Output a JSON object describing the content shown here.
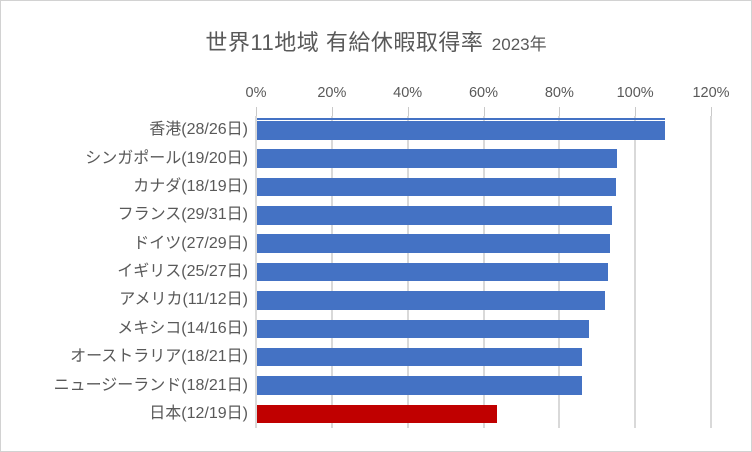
{
  "window": {
    "background": "#ffffff",
    "border_color": "#d2d2d2"
  },
  "chart_data": {
    "type": "bar",
    "orientation": "horizontal",
    "title": "世界11地域 有給休暇取得率",
    "title_suffix": "2023年",
    "categories": [
      "香港(28/26日)",
      "シンガポール(19/20日)",
      "カナダ(18/19日)",
      "フランス(29/31日)",
      "ドイツ(27/29日)",
      "イギリス(25/27日)",
      "アメリカ(11/12日)",
      "メキシコ(14/16日)",
      "オーストラリア(18/21日)",
      "ニュージーランド(18/21日)",
      "日本(12/19日)"
    ],
    "values": [
      107.7,
      95.0,
      94.7,
      93.5,
      93.1,
      92.6,
      91.7,
      87.5,
      85.7,
      85.7,
      63.2
    ],
    "unit": "%",
    "xlabel": "",
    "ylabel": "",
    "xlim": [
      0,
      120
    ],
    "x_ticks": [
      "0%",
      "20%",
      "40%",
      "60%",
      "80%",
      "100%",
      "120%"
    ],
    "x_tick_values": [
      0,
      20,
      40,
      60,
      80,
      100,
      120
    ],
    "axis_position": "top",
    "grid": true,
    "legend": false,
    "highlight_index": 10,
    "colors": {
      "default_bar": "#4472c4",
      "highlight_bar": "#c00000",
      "text": "#595959",
      "gridline": "#d9d9d9",
      "axis_overflow_line": "#4472c4"
    }
  }
}
